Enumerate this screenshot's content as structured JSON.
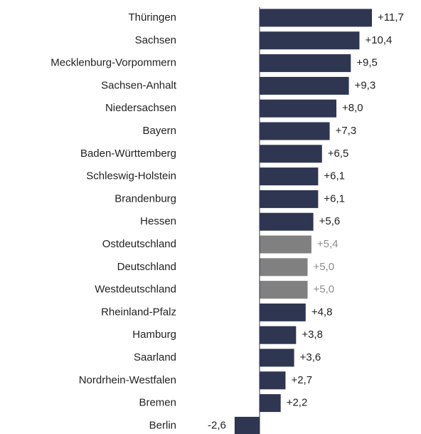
{
  "chart_data": {
    "type": "bar",
    "orientation": "horizontal",
    "categories": [
      "Thüringen",
      "Sachsen",
      "Mecklenburg-Vorpommern",
      "Sachsen-Anhalt",
      "Niedersachsen",
      "Bayern",
      "Baden-Württemberg",
      "Schleswig-Holstein",
      "Brandenburg",
      "Hessen",
      "Ostdeutschland",
      "Deutschland",
      "Westdeutschland",
      "Rheinland-Pfalz",
      "Hamburg",
      "Saarland",
      "Nordrhein-Westfalen",
      "Bremen",
      "Berlin"
    ],
    "values": [
      11.7,
      10.4,
      9.5,
      9.3,
      8.0,
      7.3,
      6.5,
      6.1,
      6.1,
      5.6,
      5.4,
      5.0,
      5.0,
      4.8,
      3.8,
      3.6,
      2.7,
      2.2,
      -2.6
    ],
    "value_labels": [
      "+11,7",
      "+10,4",
      "+9,5",
      "+9,3",
      "+8,0",
      "+7,3",
      "+6,5",
      "+6,1",
      "+6,1",
      "+5,6",
      "+5,4",
      "+5,0",
      "+5,0",
      "+4,8",
      "+3,8",
      "+3,6",
      "+2,7",
      "+2,2",
      "-2,6"
    ],
    "colors": [
      "#2e3652",
      "#2e3652",
      "#2e3652",
      "#2e3652",
      "#2e3652",
      "#2e3652",
      "#2e3652",
      "#2e3652",
      "#2e3652",
      "#2e3652",
      "#808080",
      "#808080",
      "#808080",
      "#2e3652",
      "#2e3652",
      "#2e3652",
      "#2e3652",
      "#2e3652",
      "#2e3652"
    ]
  }
}
